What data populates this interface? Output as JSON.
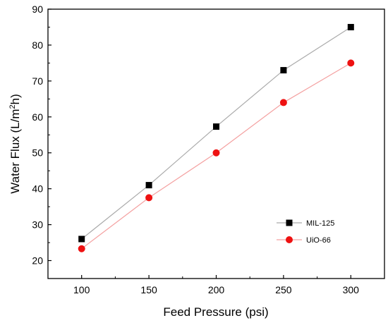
{
  "chart_data": {
    "type": "line",
    "x": [
      100,
      150,
      200,
      250,
      300
    ],
    "series": [
      {
        "name": "MIL-125",
        "values": [
          26,
          41,
          57.3,
          73,
          85
        ],
        "line_color": "#aaaaaa",
        "marker_color": "#000000",
        "marker": "square"
      },
      {
        "name": "UiO-66",
        "values": [
          23.3,
          37.5,
          50,
          64,
          75
        ],
        "line_color": "#f4a0a0",
        "marker_color": "#ee1111",
        "marker": "circle"
      }
    ],
    "xlabel": "Feed Pressure (psi)",
    "ylabel_parts": {
      "before": "Water Flux (L/m",
      "sup": "2",
      "after": "h)"
    },
    "xlim": [
      75,
      325
    ],
    "ylim": [
      15,
      90
    ],
    "xticks": [
      100,
      150,
      200,
      250,
      300
    ],
    "yticks": [
      20,
      30,
      40,
      50,
      60,
      70,
      80,
      90
    ],
    "grid": false,
    "legend_position": "lower-right"
  }
}
